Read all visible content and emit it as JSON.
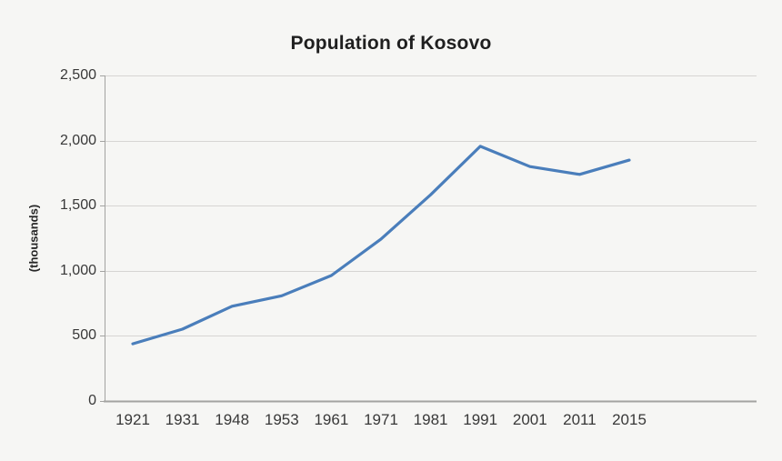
{
  "colors": {
    "background": "#f6f6f4",
    "gridline": "#d6d5d3",
    "axis": "#a3a3a1",
    "tick_text": "#383838",
    "title_text": "#1f1f1f",
    "series_line": "#4a7ebb"
  },
  "chart_data": {
    "type": "line",
    "title": "Population of Kosovo",
    "xlabel": "",
    "ylabel": "(thousands)",
    "categories": [
      "1921",
      "1931",
      "1948",
      "1953",
      "1961",
      "1971",
      "1981",
      "1991",
      "2001",
      "2011",
      "2015"
    ],
    "values": [
      439,
      552,
      728,
      808,
      964,
      1244,
      1584,
      1956,
      1800,
      1740,
      1850
    ],
    "ylim": [
      0,
      2500
    ],
    "ytick_step": 500,
    "ytick_labels": [
      "0",
      "500",
      "1,000",
      "1,500",
      "2,000",
      "2,500"
    ],
    "grid": "horizontal",
    "legend": "none",
    "markers": "none"
  }
}
